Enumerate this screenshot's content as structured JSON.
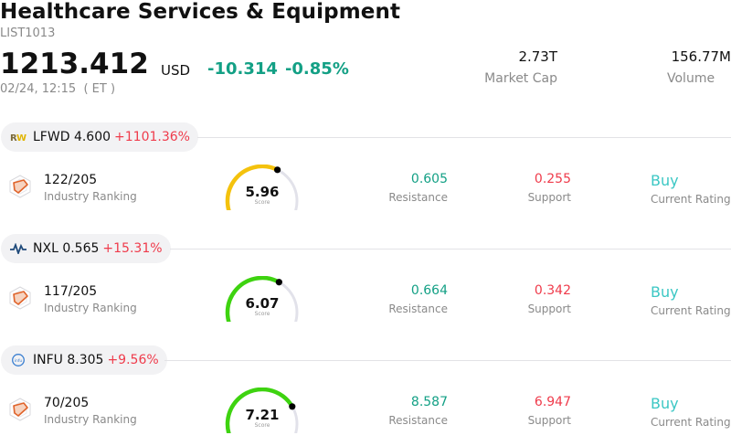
{
  "header": {
    "title": "Healthcare Services & Equipment",
    "code": "LIST1013",
    "price": "1213.412",
    "currency": "USD",
    "change": "-10.314",
    "change_pct": "-0.85%",
    "timestamp": "02/24, 12:15  ( ET )",
    "market_cap_value": "2.73T",
    "market_cap_label": "Market Cap",
    "volume_value": "156.77M",
    "volume_label": "Volume"
  },
  "colors": {
    "positive": "#13a085",
    "negative": "#ef3b4b",
    "rating": "#3bc7c4",
    "gauge_yellow": "#f4c20d",
    "gauge_green": "#3ed310",
    "gauge_track": "#e2e2ea"
  },
  "stocks": [
    {
      "logo_icon": "rw-logo-icon",
      "ticker": "LFWD",
      "price": "4.600",
      "change_pct": "+1101.36%",
      "ranking": "122/205",
      "ranking_label": "Industry Ranking",
      "score": "5.96",
      "score_label": "Score",
      "score_fraction": 0.596,
      "resistance": "0.605",
      "resistance_label": "Resistance",
      "support": "0.255",
      "support_label": "Support",
      "rating": "Buy",
      "rating_label": "Current Rating"
    },
    {
      "logo_icon": "nxl-wave-logo-icon",
      "ticker": "NXL",
      "price": "0.565",
      "change_pct": "+15.31%",
      "ranking": "117/205",
      "ranking_label": "Industry Ranking",
      "score": "6.07",
      "score_label": "Score",
      "score_fraction": 0.607,
      "resistance": "0.664",
      "resistance_label": "Resistance",
      "support": "0.342",
      "support_label": "Support",
      "rating": "Buy",
      "rating_label": "Current Rating"
    },
    {
      "logo_icon": "infu-logo-icon",
      "ticker": "INFU",
      "price": "8.305",
      "change_pct": "+9.56%",
      "ranking": "70/205",
      "ranking_label": "Industry Ranking",
      "score": "7.21",
      "score_label": "Score",
      "score_fraction": 0.721,
      "resistance": "8.587",
      "resistance_label": "Resistance",
      "support": "6.947",
      "support_label": "Support",
      "rating": "Buy",
      "rating_label": "Current Rating"
    }
  ]
}
